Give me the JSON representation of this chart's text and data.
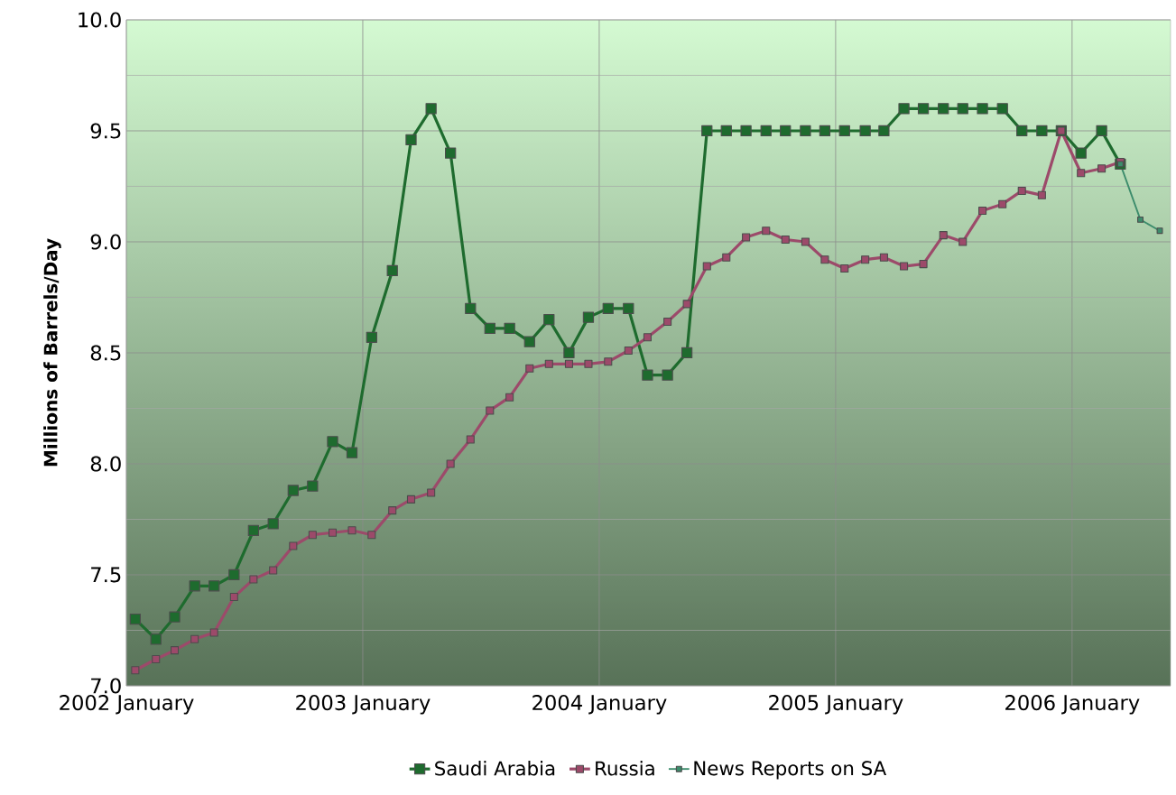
{
  "chart_data": {
    "type": "line",
    "ylabel": "Millions of Barrels/Day",
    "x": [
      "2002-01-15",
      "2002-02-15",
      "2002-03-15",
      "2002-04-15",
      "2002-05-15",
      "2002-06-15",
      "2002-07-15",
      "2002-08-15",
      "2002-09-15",
      "2002-10-15",
      "2002-11-15",
      "2002-12-15",
      "2003-01-15",
      "2003-02-15",
      "2003-03-15",
      "2003-04-15",
      "2003-05-15",
      "2003-06-15",
      "2003-07-15",
      "2003-08-15",
      "2003-09-15",
      "2003-10-15",
      "2003-11-15",
      "2003-12-15",
      "2004-01-15",
      "2004-02-15",
      "2004-03-15",
      "2004-04-15",
      "2004-05-15",
      "2004-06-15",
      "2004-07-15",
      "2004-08-15",
      "2004-09-15",
      "2004-10-15",
      "2004-11-15",
      "2004-12-15",
      "2005-01-15",
      "2005-02-15",
      "2005-03-15",
      "2005-04-15",
      "2005-05-15",
      "2005-06-15",
      "2005-07-15",
      "2005-08-15",
      "2005-09-15",
      "2005-10-15",
      "2005-11-15",
      "2005-12-15",
      "2006-01-15",
      "2006-02-15",
      "2006-03-15"
    ],
    "series": [
      {
        "name": "Saudi Arabia",
        "color": "#1e6b2e",
        "values": [
          7.3,
          7.21,
          7.31,
          7.45,
          7.45,
          7.5,
          7.7,
          7.73,
          7.88,
          7.9,
          8.1,
          8.05,
          8.57,
          8.87,
          9.46,
          9.6,
          9.4,
          8.7,
          8.61,
          8.61,
          8.55,
          8.65,
          8.5,
          8.66,
          8.7,
          8.7,
          8.4,
          8.4,
          8.5,
          9.5,
          9.5,
          9.5,
          9.5,
          9.5,
          9.5,
          9.5,
          9.5,
          9.5,
          9.5,
          9.6,
          9.6,
          9.6,
          9.6,
          9.6,
          9.6,
          9.5,
          9.5,
          9.5,
          9.4,
          9.5,
          9.35
        ]
      },
      {
        "name": "Russia",
        "color": "#9c4a6a",
        "values": [
          7.07,
          7.12,
          7.16,
          7.21,
          7.24,
          7.4,
          7.48,
          7.52,
          7.63,
          7.68,
          7.69,
          7.7,
          7.68,
          7.79,
          7.84,
          7.87,
          8.0,
          8.11,
          8.24,
          8.3,
          8.43,
          8.45,
          8.45,
          8.45,
          8.46,
          8.51,
          8.57,
          8.64,
          8.72,
          8.89,
          8.93,
          9.02,
          9.05,
          9.01,
          9.0,
          8.92,
          8.88,
          8.92,
          8.93,
          8.89,
          8.9,
          9.03,
          9.0,
          9.14,
          9.17,
          9.23,
          9.21,
          9.5,
          9.31,
          9.33,
          9.36
        ]
      },
      {
        "name": "News Reports on SA",
        "color": "#3c8c6c",
        "x": [
          "2006-03-15",
          "2006-04-15",
          "2006-05-15"
        ],
        "values": [
          9.35,
          9.1,
          9.05
        ]
      }
    ],
    "xlim": [
      "2002-01-01",
      "2006-06-01"
    ],
    "xticks": [
      {
        "value": "2002-01-01",
        "label": "2002 January"
      },
      {
        "value": "2003-01-01",
        "label": "2003 January"
      },
      {
        "value": "2004-01-01",
        "label": "2004 January"
      },
      {
        "value": "2005-01-01",
        "label": "2005 January"
      },
      {
        "value": "2006-01-01",
        "label": "2006 January"
      }
    ],
    "ylim": [
      7.0,
      10.0
    ],
    "yticks": [
      {
        "value": 7,
        "label": "7.0"
      },
      {
        "value": 7.5,
        "label": "7.5"
      },
      {
        "value": 8,
        "label": "8.0"
      },
      {
        "value": 8.5,
        "label": "8.5"
      },
      {
        "value": 9,
        "label": "9.0"
      },
      {
        "value": 9.5,
        "label": "9.5"
      },
      {
        "value": 10,
        "label": "10.0"
      }
    ],
    "grid": true,
    "legend": "bottom",
    "marker": "square",
    "line_style": "solid"
  }
}
